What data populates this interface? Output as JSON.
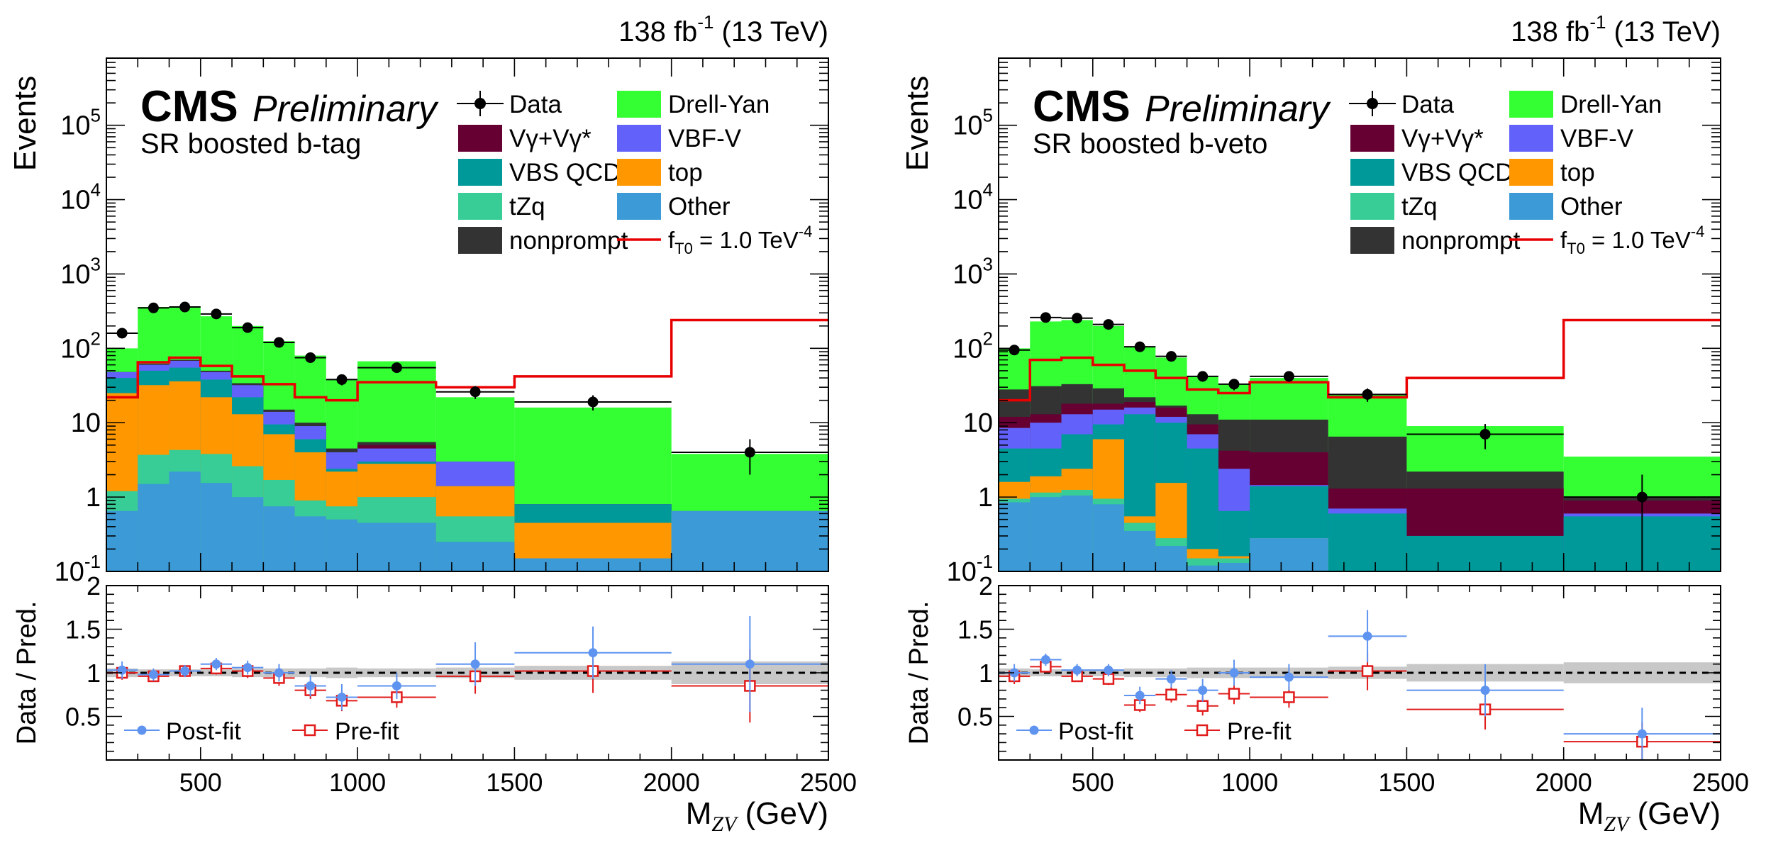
{
  "figure": {
    "lumi_label": "138 fb",
    "lumi_sup": "-1",
    "energy_label": "(13 TeV)",
    "cms_label": "CMS",
    "preliminary_label": "Preliminary",
    "ylabel_top": "Events",
    "ylabel_bottom": "Data / Pred.",
    "xlabel_main": "M",
    "xlabel_sub": "ZV",
    "xlabel_unit": "(GeV)"
  },
  "colors": {
    "Other": "#3c9ad6",
    "tZq": "#38cc96",
    "top": "#ff9800",
    "VBS QCD": "#00999a",
    "VBF-V": "#6262fa",
    "Vgamma": "#660033",
    "nonprompt": "#333333",
    "Drell-Yan": "#33ff33",
    "signal": "#e80000",
    "postfit": "#5e93f0",
    "prefit": "#e11b1b",
    "band": "#c8c8c8",
    "data": "#000000"
  },
  "legend": {
    "left": [
      "Data",
      "Vγ+Vγ*",
      "VBS QCD",
      "tZq",
      "nonprompt"
    ],
    "right": [
      "Drell-Yan",
      "VBF-V",
      "top",
      "Other"
    ],
    "signal_label": "f",
    "signal_sub": "T0",
    "signal_value": " = 1.0 TeV",
    "signal_sup": "-4",
    "ratio_postfit": "Post-fit",
    "ratio_prefit": "Pre-fit"
  },
  "chart_data": [
    {
      "type": "bar",
      "stacked": true,
      "region": "SR boosted b-tag",
      "title": "138 fb-1 (13 TeV)",
      "xlabel": "MZV (GeV)",
      "ylabel": "Events",
      "xlim": [
        200,
        2500
      ],
      "ylim": [
        0.1,
        800000
      ],
      "yscale": "log",
      "x_ticks": [
        "500",
        "1000",
        "1500",
        "2000",
        "2500"
      ],
      "y_ticks": [
        {
          "v": 0.1,
          "base": "10",
          "exp": "-1"
        },
        {
          "v": 1,
          "base": "1",
          "exp": ""
        },
        {
          "v": 10,
          "base": "10",
          "exp": ""
        },
        {
          "v": 100,
          "base": "10",
          "exp": "2"
        },
        {
          "v": 1000,
          "base": "10",
          "exp": "3"
        },
        {
          "v": 10000,
          "base": "10",
          "exp": "4"
        },
        {
          "v": 100000,
          "base": "10",
          "exp": "5"
        }
      ],
      "bin_edges": [
        200,
        300,
        400,
        500,
        600,
        700,
        800,
        900,
        1000,
        1250,
        1500,
        2000,
        2500
      ],
      "stack_order": [
        "Other",
        "tZq",
        "top",
        "VBS QCD",
        "VBF-V",
        "Vgamma",
        "nonprompt",
        "Drell-Yan"
      ],
      "stack_cumulative": {
        "Other": [
          0.65,
          1.5,
          2.2,
          1.55,
          1.0,
          0.75,
          0.55,
          0.5,
          0.45,
          0.25,
          0.15,
          0.65
        ],
        "tZq": [
          1.2,
          3.7,
          4.3,
          3.8,
          2.6,
          1.7,
          0.9,
          0.75,
          1.0,
          0.55,
          0.15,
          0.65
        ],
        "top": [
          25,
          32,
          36,
          22,
          13,
          7,
          4.0,
          2.2,
          2.8,
          1.4,
          0.45,
          0.65
        ],
        "VBS QCD": [
          40,
          50,
          55,
          38,
          22,
          9.5,
          6.0,
          2.4,
          3.0,
          1.4,
          0.8,
          0.65
        ],
        "VBF-V": [
          48,
          60,
          68,
          48,
          32,
          14,
          9.0,
          4.0,
          4.5,
          3.0,
          0.8,
          0.65
        ],
        "Vgamma": [
          48,
          60,
          68,
          48,
          32,
          14,
          9.0,
          4.0,
          5.0,
          3.0,
          0.8,
          0.65
        ],
        "nonprompt": [
          48,
          62,
          70,
          50,
          34,
          15,
          10.0,
          4.5,
          5.5,
          3.0,
          0.8,
          0.65
        ],
        "Drell-Yan": [
          100,
          360,
          365,
          270,
          200,
          125,
          80,
          38,
          67,
          22,
          16,
          3.8
        ]
      },
      "signal": [
        22,
        65,
        75,
        58,
        42,
        33,
        22,
        20,
        35,
        30,
        42,
        240
      ],
      "data": {
        "x": [
          250,
          350,
          450,
          550,
          650,
          750,
          850,
          950,
          1125,
          1375,
          1750,
          2250
        ],
        "y": [
          160,
          350,
          360,
          290,
          190,
          120,
          75,
          38,
          55,
          26,
          19,
          4
        ],
        "err": [
          12,
          19,
          19,
          17,
          14,
          11,
          8.7,
          6.2,
          7.4,
          5.1,
          4.4,
          2.0
        ]
      },
      "ratio": {
        "ylim": [
          0,
          2
        ],
        "y_ticks": [
          "0.5",
          "1",
          "1.5",
          "2"
        ],
        "band_half": [
          0.05,
          0.04,
          0.04,
          0.04,
          0.05,
          0.05,
          0.05,
          0.06,
          0.05,
          0.06,
          0.08,
          0.13
        ],
        "postfit": [
          1.03,
          0.98,
          1.02,
          1.1,
          1.06,
          1.0,
          0.85,
          0.72,
          0.85,
          1.1,
          1.23,
          1.1
        ],
        "postfit_err": [
          0.1,
          0.07,
          0.07,
          0.07,
          0.08,
          0.1,
          0.12,
          0.15,
          0.15,
          0.25,
          0.3,
          0.55
        ],
        "prefit": [
          1.0,
          0.96,
          1.02,
          1.05,
          1.02,
          0.94,
          0.8,
          0.68,
          0.72,
          0.96,
          1.02,
          0.85
        ],
        "prefit_err": [
          0.08,
          0.06,
          0.06,
          0.07,
          0.08,
          0.09,
          0.1,
          0.12,
          0.12,
          0.2,
          0.25,
          0.42
        ]
      }
    },
    {
      "type": "bar",
      "stacked": true,
      "region": "SR boosted b-veto",
      "title": "138 fb-1 (13 TeV)",
      "xlabel": "MZV (GeV)",
      "ylabel": "Events",
      "xlim": [
        200,
        2500
      ],
      "ylim": [
        0.1,
        800000
      ],
      "yscale": "log",
      "x_ticks": [
        "500",
        "1000",
        "1500",
        "2000",
        "2500"
      ],
      "y_ticks": [
        {
          "v": 0.1,
          "base": "10",
          "exp": "-1"
        },
        {
          "v": 1,
          "base": "1",
          "exp": ""
        },
        {
          "v": 10,
          "base": "10",
          "exp": ""
        },
        {
          "v": 100,
          "base": "10",
          "exp": "2"
        },
        {
          "v": 1000,
          "base": "10",
          "exp": "3"
        },
        {
          "v": 10000,
          "base": "10",
          "exp": "4"
        },
        {
          "v": 100000,
          "base": "10",
          "exp": "5"
        }
      ],
      "bin_edges": [
        200,
        300,
        400,
        500,
        600,
        700,
        800,
        900,
        1000,
        1250,
        1500,
        2000,
        2500
      ],
      "stack_order": [
        "Other",
        "tZq",
        "top",
        "VBS QCD",
        "VBF-V",
        "Vgamma",
        "nonprompt",
        "Drell-Yan"
      ],
      "stack_cumulative": {
        "Other": [
          0.85,
          1.0,
          1.05,
          0.8,
          0.35,
          0.22,
          0.12,
          0.13,
          0.28,
          0.1,
          0.1,
          0.1
        ],
        "tZq": [
          0.95,
          1.15,
          1.25,
          0.95,
          0.45,
          0.28,
          0.15,
          0.15,
          0.28,
          0.1,
          0.1,
          0.1
        ],
        "top": [
          1.6,
          1.9,
          2.4,
          6.0,
          0.55,
          1.55,
          0.2,
          0.16,
          0.28,
          0.1,
          0.1,
          0.1
        ],
        "VBS QCD": [
          4.5,
          4.5,
          7.0,
          9.5,
          13,
          10,
          4.5,
          0.65,
          1.4,
          0.6,
          0.3,
          0.55
        ],
        "VBF-V": [
          8.5,
          10,
          13,
          15,
          16,
          12,
          7.0,
          2.4,
          1.45,
          0.7,
          0.3,
          0.6
        ],
        "Vgamma": [
          12,
          13,
          18,
          18,
          19,
          16,
          9.5,
          4.2,
          4.0,
          1.3,
          1.3,
          0.9
        ],
        "nonprompt": [
          28,
          31,
          33,
          29,
          22,
          17,
          13,
          11,
          11,
          6.5,
          2.2,
          1.0
        ],
        "Drell-Yan": [
          100,
          230,
          240,
          200,
          105,
          75,
          42,
          33,
          40,
          24,
          9,
          3.5
        ]
      },
      "signal": [
        20,
        70,
        75,
        60,
        50,
        40,
        28,
        25,
        35,
        22,
        40,
        240
      ],
      "data": {
        "x": [
          250,
          350,
          450,
          550,
          650,
          750,
          850,
          950,
          1125,
          1375,
          1750,
          2250
        ],
        "y": [
          95,
          260,
          255,
          210,
          105,
          78,
          42,
          33,
          42,
          24,
          7,
          1
        ],
        "err": [
          9.7,
          16,
          16,
          14.5,
          10.2,
          8.8,
          6.5,
          5.7,
          6.5,
          4.9,
          2.6,
          1.0
        ]
      },
      "ratio": {
        "ylim": [
          0,
          2
        ],
        "y_ticks": [
          "0.5",
          "1",
          "1.5",
          "2"
        ],
        "band_half": [
          0.05,
          0.04,
          0.04,
          0.04,
          0.05,
          0.05,
          0.06,
          0.06,
          0.06,
          0.07,
          0.1,
          0.12
        ],
        "postfit": [
          1.0,
          1.15,
          1.03,
          1.03,
          0.74,
          0.93,
          0.8,
          1.0,
          0.95,
          1.42,
          0.8,
          0.3
        ],
        "postfit_err": [
          0.1,
          0.07,
          0.07,
          0.07,
          0.1,
          0.1,
          0.13,
          0.15,
          0.15,
          0.3,
          0.3,
          0.3
        ],
        "prefit": [
          0.96,
          1.07,
          0.96,
          0.93,
          0.63,
          0.75,
          0.62,
          0.76,
          0.72,
          1.02,
          0.58,
          0.21
        ],
        "prefit_err": [
          0.09,
          0.06,
          0.06,
          0.07,
          0.08,
          0.09,
          0.11,
          0.12,
          0.12,
          0.22,
          0.23,
          0.22
        ]
      }
    }
  ]
}
